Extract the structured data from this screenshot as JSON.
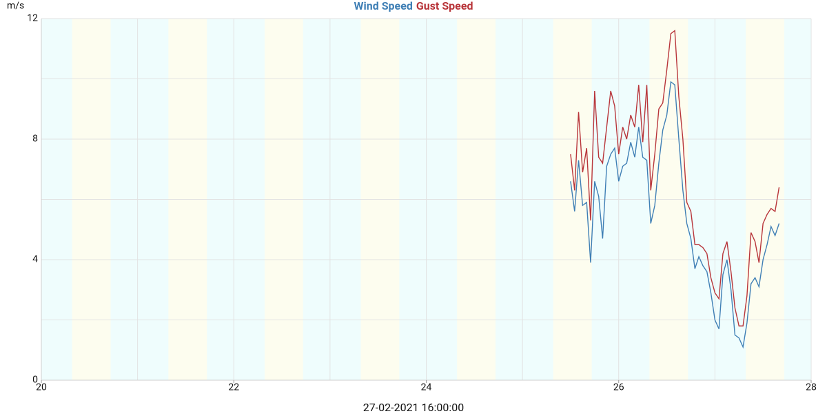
{
  "chart_data": {
    "type": "line",
    "y_unit_label": "m/s",
    "x_label": "27-02-2021 16:00:00",
    "legend_position": "top-center",
    "grid": true,
    "plot_background": "#effdfd",
    "shaded_periods": [
      {
        "start": 20.32,
        "end": 20.72,
        "color": "#fdfdef"
      },
      {
        "start": 21.32,
        "end": 21.72,
        "color": "#fdfdef"
      },
      {
        "start": 22.32,
        "end": 22.72,
        "color": "#fdfdef"
      },
      {
        "start": 23.32,
        "end": 23.72,
        "color": "#fdfdef"
      },
      {
        "start": 24.32,
        "end": 24.72,
        "color": "#fdfdef"
      },
      {
        "start": 25.32,
        "end": 25.72,
        "color": "#fdfdef"
      },
      {
        "start": 26.32,
        "end": 26.72,
        "color": "#fdfdef"
      },
      {
        "start": 27.32,
        "end": 27.72,
        "color": "#fdfdef"
      }
    ],
    "xlim": [
      20,
      28
    ],
    "xticks": [
      20,
      22,
      24,
      26,
      28
    ],
    "xminor_ticks": [
      21,
      23,
      25,
      27
    ],
    "ylim": [
      0,
      12
    ],
    "yticks": [
      0,
      4,
      8,
      12
    ],
    "yminor_ticks": [
      2,
      6,
      10
    ],
    "x": [
      25.5,
      25.542,
      25.583,
      25.625,
      25.667,
      25.708,
      25.75,
      25.792,
      25.833,
      25.875,
      25.917,
      25.958,
      26,
      26.042,
      26.083,
      26.125,
      26.167,
      26.208,
      26.25,
      26.292,
      26.333,
      26.375,
      26.417,
      26.458,
      26.5,
      26.542,
      26.583,
      26.625,
      26.667,
      26.708,
      26.75,
      26.792,
      26.833,
      26.875,
      26.917,
      26.958,
      27,
      27.042,
      27.083,
      27.125,
      27.167,
      27.208,
      27.25,
      27.292,
      27.333,
      27.375,
      27.417,
      27.458,
      27.5,
      27.542,
      27.583,
      27.625,
      27.667
    ],
    "series": [
      {
        "name": "Wind Speed",
        "color": "#3f7fb5",
        "values": [
          6.6,
          5.6,
          7.3,
          5.8,
          5.9,
          3.9,
          6.6,
          6.1,
          4.7,
          7.1,
          7.5,
          7.7,
          6.6,
          7.1,
          7.2,
          7.9,
          7.4,
          8.4,
          7.4,
          7.3,
          5.2,
          5.8,
          7.2,
          8.3,
          8.8,
          9.9,
          9.8,
          8.0,
          6.3,
          5.2,
          4.7,
          3.7,
          4.1,
          3.8,
          3.6,
          2.9,
          2.0,
          1.7,
          3.5,
          4.0,
          3.0,
          1.5,
          1.4,
          1.1,
          1.9,
          3.2,
          3.4,
          3.1,
          4.0,
          4.5,
          5.1,
          4.8,
          5.2
        ]
      },
      {
        "name": "Gust Speed",
        "color": "#b8353a",
        "values": [
          7.5,
          6.3,
          8.9,
          6.9,
          7.7,
          5.3,
          9.6,
          7.4,
          7.2,
          8.4,
          9.6,
          9.1,
          7.5,
          8.4,
          8.0,
          8.8,
          8.4,
          9.8,
          7.9,
          9.8,
          6.3,
          7.5,
          9.0,
          9.2,
          10.3,
          11.5,
          11.6,
          9.4,
          8.0,
          5.9,
          5.6,
          4.5,
          4.5,
          4.4,
          4.2,
          3.4,
          2.9,
          2.7,
          4.2,
          4.6,
          3.6,
          2.4,
          1.8,
          1.8,
          2.8,
          4.9,
          4.6,
          3.9,
          5.2,
          5.5,
          5.7,
          5.6,
          6.4
        ]
      }
    ]
  }
}
